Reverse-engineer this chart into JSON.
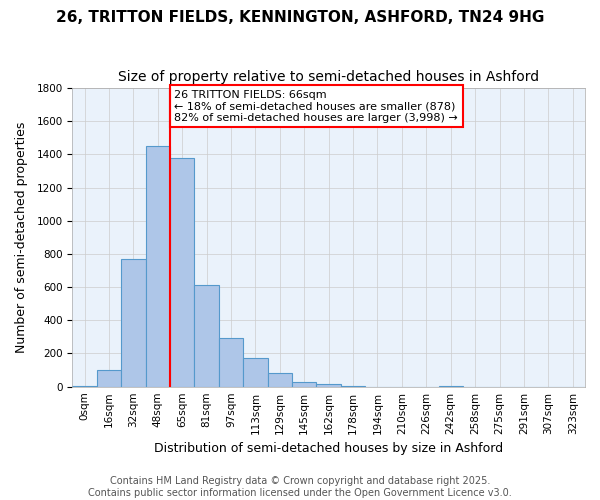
{
  "title": "26, TRITTON FIELDS, KENNINGTON, ASHFORD, TN24 9HG",
  "subtitle": "Size of property relative to semi-detached houses in Ashford",
  "xlabel": "Distribution of semi-detached houses by size in Ashford",
  "ylabel": "Number of semi-detached properties",
  "bin_labels": [
    "0sqm",
    "16sqm",
    "32sqm",
    "48sqm",
    "65sqm",
    "81sqm",
    "97sqm",
    "113sqm",
    "129sqm",
    "145sqm",
    "162sqm",
    "178sqm",
    "194sqm",
    "210sqm",
    "226sqm",
    "242sqm",
    "258sqm",
    "275sqm",
    "291sqm",
    "307sqm",
    "323sqm"
  ],
  "bin_values": [
    5,
    100,
    770,
    1450,
    1380,
    615,
    295,
    175,
    85,
    30,
    15,
    5,
    0,
    0,
    0,
    5,
    0,
    0,
    0,
    0,
    0
  ],
  "bar_color": "#aec6e8",
  "bar_edge_color": "#5599cc",
  "property_line_color": "red",
  "annotation_text": "26 TRITTON FIELDS: 66sqm\n← 18% of semi-detached houses are smaller (878)\n82% of semi-detached houses are larger (3,998) →",
  "annotation_box_color": "white",
  "annotation_box_edge": "red",
  "ylim": [
    0,
    1800
  ],
  "yticks": [
    0,
    200,
    400,
    600,
    800,
    1000,
    1200,
    1400,
    1600,
    1800
  ],
  "background_color": "#eaf2fb",
  "grid_color": "#cccccc",
  "footer_line1": "Contains HM Land Registry data © Crown copyright and database right 2025.",
  "footer_line2": "Contains public sector information licensed under the Open Government Licence v3.0.",
  "title_fontsize": 11,
  "subtitle_fontsize": 10,
  "axis_label_fontsize": 9,
  "tick_fontsize": 7.5,
  "annotation_fontsize": 8,
  "footer_fontsize": 7
}
